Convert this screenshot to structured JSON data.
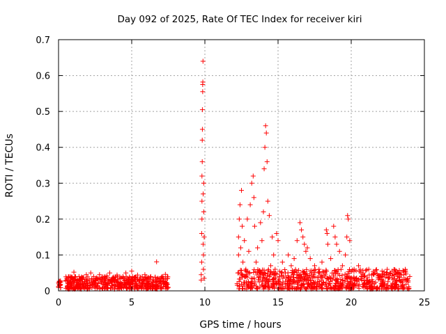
{
  "chart_data": {
    "type": "scatter",
    "title": "Day 092 of 2025, Rate Of TEC Index for receiver kiri",
    "xlabel": "GPS time / hours",
    "ylabel": "ROTI / TECUs",
    "xlim": [
      0,
      25
    ],
    "ylim": [
      0,
      0.7
    ],
    "xticks": [
      "0",
      "5",
      "10",
      "15",
      "20",
      "25"
    ],
    "xtick_values": [
      0,
      5,
      10,
      15,
      20,
      25
    ],
    "yticks": [
      "0",
      "0.1",
      "0.2",
      "0.3",
      "0.4",
      "0.5",
      "0.6",
      "0.7"
    ],
    "ytick_values": [
      0,
      0.1,
      0.2,
      0.3,
      0.4,
      0.5,
      0.6,
      0.7
    ],
    "grid": true,
    "marker": "+",
    "color": "#ff0000",
    "series": [
      {
        "name": "ROTI",
        "points": [
          [
            0.0,
            0.022
          ],
          [
            0.0,
            0.012
          ],
          [
            0.05,
            0.018
          ],
          [
            0.1,
            0.025
          ],
          [
            0.1,
            0.015
          ],
          [
            0.6,
            0.012
          ],
          [
            0.7,
            0.022
          ],
          [
            0.8,
            0.03
          ],
          [
            0.9,
            0.018
          ],
          [
            1.0,
            0.035
          ],
          [
            1.05,
            0.052
          ],
          [
            1.1,
            0.024
          ],
          [
            1.2,
            0.016
          ],
          [
            1.3,
            0.028
          ],
          [
            1.4,
            0.04
          ],
          [
            1.5,
            0.02
          ],
          [
            1.6,
            0.033
          ],
          [
            1.7,
            0.014
          ],
          [
            1.8,
            0.026
          ],
          [
            1.9,
            0.045
          ],
          [
            2.0,
            0.022
          ],
          [
            2.1,
            0.03
          ],
          [
            2.2,
            0.05
          ],
          [
            2.3,
            0.018
          ],
          [
            2.4,
            0.04
          ],
          [
            2.5,
            0.028
          ],
          [
            2.6,
            0.036
          ],
          [
            2.7,
            0.02
          ],
          [
            2.8,
            0.045
          ],
          [
            2.9,
            0.025
          ],
          [
            3.0,
            0.032
          ],
          [
            3.1,
            0.018
          ],
          [
            3.2,
            0.028
          ],
          [
            3.3,
            0.042
          ],
          [
            3.4,
            0.022
          ],
          [
            3.5,
            0.05
          ],
          [
            3.6,
            0.026
          ],
          [
            3.7,
            0.036
          ],
          [
            3.8,
            0.018
          ],
          [
            3.9,
            0.03
          ],
          [
            4.0,
            0.044
          ],
          [
            4.1,
            0.024
          ],
          [
            4.2,
            0.034
          ],
          [
            4.3,
            0.02
          ],
          [
            4.4,
            0.04
          ],
          [
            4.5,
            0.028
          ],
          [
            4.6,
            0.05
          ],
          [
            4.7,
            0.022
          ],
          [
            4.8,
            0.032
          ],
          [
            4.9,
            0.018
          ],
          [
            5.0,
            0.055
          ],
          [
            5.05,
            0.04
          ],
          [
            5.1,
            0.026
          ],
          [
            5.2,
            0.036
          ],
          [
            5.3,
            0.02
          ],
          [
            5.4,
            0.044
          ],
          [
            5.5,
            0.028
          ],
          [
            5.6,
            0.038
          ],
          [
            5.7,
            0.018
          ],
          [
            5.8,
            0.03
          ],
          [
            5.9,
            0.045
          ],
          [
            6.0,
            0.022
          ],
          [
            6.1,
            0.034
          ],
          [
            6.2,
            0.026
          ],
          [
            6.3,
            0.04
          ],
          [
            6.4,
            0.018
          ],
          [
            6.5,
            0.03
          ],
          [
            6.6,
            0.038
          ],
          [
            6.7,
            0.081
          ],
          [
            6.8,
            0.024
          ],
          [
            6.9,
            0.034
          ],
          [
            7.0,
            0.02
          ],
          [
            7.1,
            0.04
          ],
          [
            7.2,
            0.028
          ],
          [
            7.3,
            0.046
          ],
          [
            7.4,
            0.022
          ],
          [
            7.45,
            0.034
          ],
          [
            9.75,
            0.03
          ],
          [
            9.75,
            0.045
          ],
          [
            9.78,
            0.08
          ],
          [
            9.78,
            0.16
          ],
          [
            9.8,
            0.2
          ],
          [
            9.8,
            0.25
          ],
          [
            9.8,
            0.32
          ],
          [
            9.82,
            0.36
          ],
          [
            9.82,
            0.42
          ],
          [
            9.83,
            0.45
          ],
          [
            9.83,
            0.505
          ],
          [
            9.85,
            0.555
          ],
          [
            9.85,
            0.575
          ],
          [
            9.86,
            0.582
          ],
          [
            9.87,
            0.64
          ],
          [
            9.88,
            0.27
          ],
          [
            9.88,
            0.13
          ],
          [
            9.9,
            0.06
          ],
          [
            9.9,
            0.1
          ],
          [
            9.92,
            0.22
          ],
          [
            9.92,
            0.3
          ],
          [
            9.95,
            0.035
          ],
          [
            9.95,
            0.15
          ],
          [
            12.2,
            0.02
          ],
          [
            12.25,
            0.05
          ],
          [
            12.3,
            0.1
          ],
          [
            12.3,
            0.15
          ],
          [
            12.35,
            0.2
          ],
          [
            12.4,
            0.24
          ],
          [
            12.45,
            0.12
          ],
          [
            12.5,
            0.28
          ],
          [
            12.55,
            0.18
          ],
          [
            12.6,
            0.08
          ],
          [
            12.7,
            0.14
          ],
          [
            12.8,
            0.06
          ],
          [
            12.9,
            0.2
          ],
          [
            13.0,
            0.11
          ],
          [
            13.1,
            0.24
          ],
          [
            13.2,
            0.3
          ],
          [
            13.3,
            0.32
          ],
          [
            13.35,
            0.26
          ],
          [
            13.4,
            0.18
          ],
          [
            13.5,
            0.08
          ],
          [
            13.6,
            0.12
          ],
          [
            13.7,
            0.05
          ],
          [
            13.8,
            0.19
          ],
          [
            13.9,
            0.14
          ],
          [
            14.0,
            0.22
          ],
          [
            14.05,
            0.34
          ],
          [
            14.1,
            0.4
          ],
          [
            14.15,
            0.46
          ],
          [
            14.2,
            0.44
          ],
          [
            14.25,
            0.36
          ],
          [
            14.3,
            0.25
          ],
          [
            14.4,
            0.21
          ],
          [
            14.5,
            0.07
          ],
          [
            14.6,
            0.15
          ],
          [
            14.7,
            0.1
          ],
          [
            14.8,
            0.06
          ],
          [
            14.9,
            0.16
          ],
          [
            15.0,
            0.14
          ],
          [
            15.1,
            0.04
          ],
          [
            15.3,
            0.08
          ],
          [
            15.5,
            0.05
          ],
          [
            15.7,
            0.1
          ],
          [
            15.9,
            0.07
          ],
          [
            16.1,
            0.09
          ],
          [
            16.3,
            0.14
          ],
          [
            16.5,
            0.19
          ],
          [
            16.6,
            0.17
          ],
          [
            16.7,
            0.15
          ],
          [
            16.8,
            0.13
          ],
          [
            16.9,
            0.11
          ],
          [
            17.0,
            0.12
          ],
          [
            17.2,
            0.09
          ],
          [
            17.5,
            0.07
          ],
          [
            17.8,
            0.06
          ],
          [
            18.0,
            0.08
          ],
          [
            18.3,
            0.17
          ],
          [
            18.35,
            0.16
          ],
          [
            18.4,
            0.13
          ],
          [
            18.6,
            0.09
          ],
          [
            18.8,
            0.18
          ],
          [
            18.9,
            0.15
          ],
          [
            19.0,
            0.13
          ],
          [
            19.2,
            0.11
          ],
          [
            19.4,
            0.07
          ],
          [
            19.6,
            0.1
          ],
          [
            19.7,
            0.15
          ],
          [
            19.75,
            0.21
          ],
          [
            19.8,
            0.2
          ],
          [
            19.9,
            0.14
          ],
          [
            20.2,
            0.06
          ],
          [
            20.5,
            0.07
          ],
          [
            20.8,
            0.05
          ],
          [
            21.2,
            0.06
          ],
          [
            21.6,
            0.05
          ],
          [
            22.0,
            0.04
          ],
          [
            22.4,
            0.05
          ],
          [
            22.8,
            0.055
          ],
          [
            23.2,
            0.05
          ],
          [
            23.6,
            0.045
          ],
          [
            24.0,
            0.04
          ]
        ]
      }
    ],
    "dense_bands": [
      {
        "x_start": 0.0,
        "x_end": 0.15,
        "y_min": 0.008,
        "y_max": 0.028
      },
      {
        "x_start": 0.5,
        "x_end": 7.5,
        "y_min": 0.005,
        "y_max": 0.04
      },
      {
        "x_start": 12.2,
        "x_end": 24.0,
        "y_min": 0.005,
        "y_max": 0.06
      }
    ]
  }
}
